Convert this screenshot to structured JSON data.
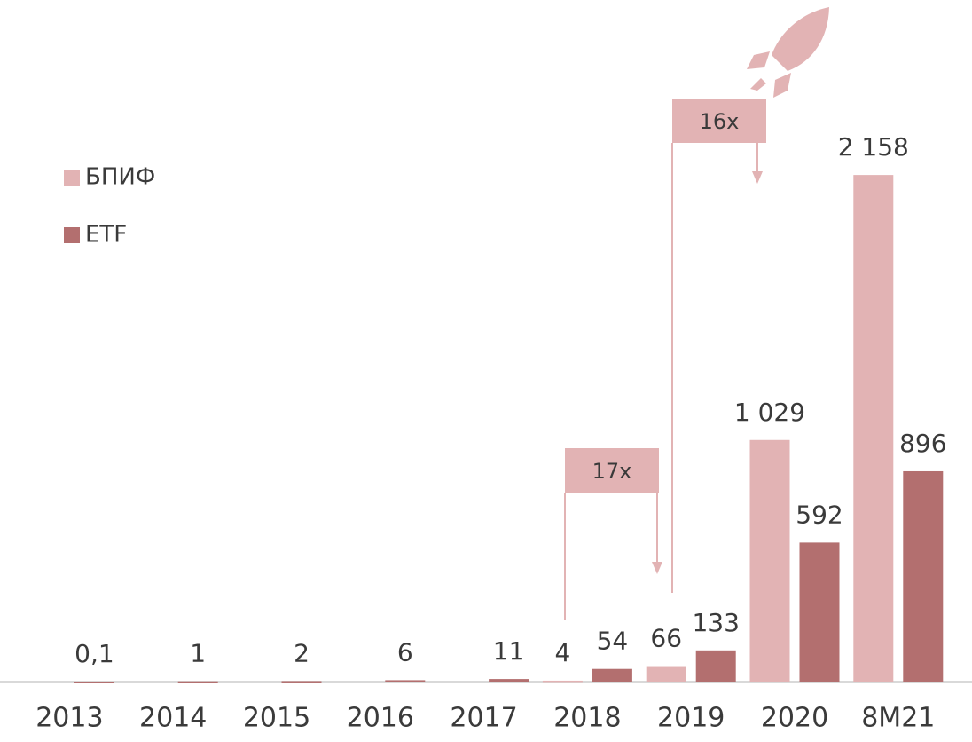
{
  "chart_data": {
    "type": "bar",
    "categories": [
      "2013",
      "2014",
      "2015",
      "2016",
      "2017",
      "2018",
      "2019",
      "2020",
      "8M21"
    ],
    "series": [
      {
        "name": "БПИФ",
        "color": "#e2b3b4",
        "values": [
          null,
          null,
          null,
          null,
          null,
          4,
          66,
          1029,
          2158
        ],
        "value_labels": [
          null,
          null,
          null,
          null,
          null,
          "4",
          "66",
          "1 029",
          "2 158"
        ]
      },
      {
        "name": "ETF",
        "color": "#b36f6f",
        "values": [
          0.1,
          1,
          2,
          6,
          11,
          54,
          133,
          592,
          896
        ],
        "value_labels": [
          "0,1",
          "1",
          "2",
          "6",
          "11",
          "54",
          "133",
          "592",
          "896"
        ]
      }
    ],
    "ylim": [
      0,
      2200
    ],
    "annotations": [
      {
        "text": "17x"
      },
      {
        "text": "16x"
      }
    ]
  }
}
